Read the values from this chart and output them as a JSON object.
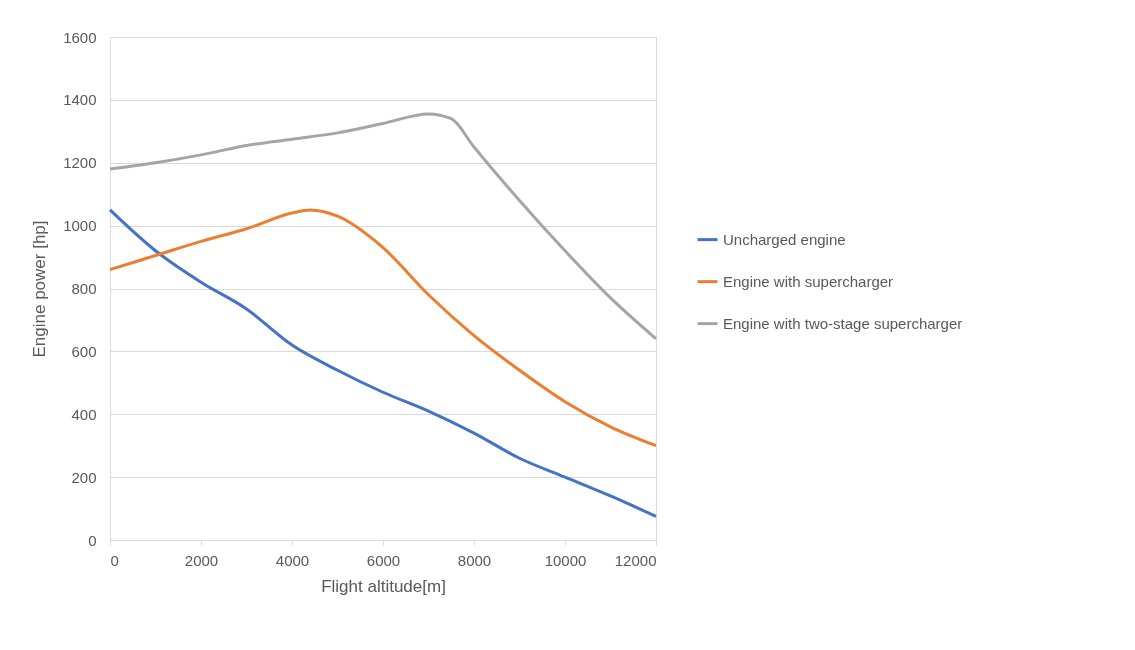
{
  "chart_data": {
    "type": "line",
    "xlabel": "Flight altitude[m]",
    "ylabel": "Engine power [hp]",
    "xlim": [
      0,
      12000
    ],
    "xticks": [
      0,
      2000,
      4000,
      6000,
      8000,
      10000,
      12000
    ],
    "ylim": [
      0,
      1600
    ],
    "yticks": [
      0,
      200,
      400,
      600,
      800,
      1000,
      1200,
      1400,
      1600
    ],
    "grid": "y",
    "legend": "right",
    "marker": "none",
    "line_style": "solid",
    "series": [
      {
        "name": "Uncharged engine",
        "color": "#4472c4",
        "x": [
          0,
          1000,
          2000,
          3000,
          4000,
          5000,
          6000,
          7000,
          8000,
          9000,
          10000,
          11000,
          12000
        ],
        "values": [
          1050,
          920,
          820,
          735,
          620,
          540,
          470,
          410,
          340,
          260,
          200,
          140,
          75
        ]
      },
      {
        "name": "Engine with supercharger",
        "color": "#ed7d31",
        "x": [
          0,
          1000,
          2000,
          3000,
          4000,
          4400,
          5000,
          6000,
          7000,
          8000,
          9000,
          10000,
          11000,
          12000
        ],
        "values": [
          860,
          905,
          950,
          990,
          1040,
          1050,
          1030,
          930,
          780,
          650,
          540,
          440,
          360,
          300
        ]
      },
      {
        "name": "Engine with two-stage supercharger",
        "color": "#a5a5a5",
        "x": [
          0,
          1000,
          2000,
          3000,
          4000,
          5000,
          6000,
          7000,
          7500,
          8000,
          9000,
          10000,
          11000,
          12000
        ],
        "values": [
          1180,
          1200,
          1225,
          1255,
          1275,
          1295,
          1325,
          1355,
          1340,
          1250,
          1080,
          920,
          770,
          640
        ]
      }
    ]
  }
}
